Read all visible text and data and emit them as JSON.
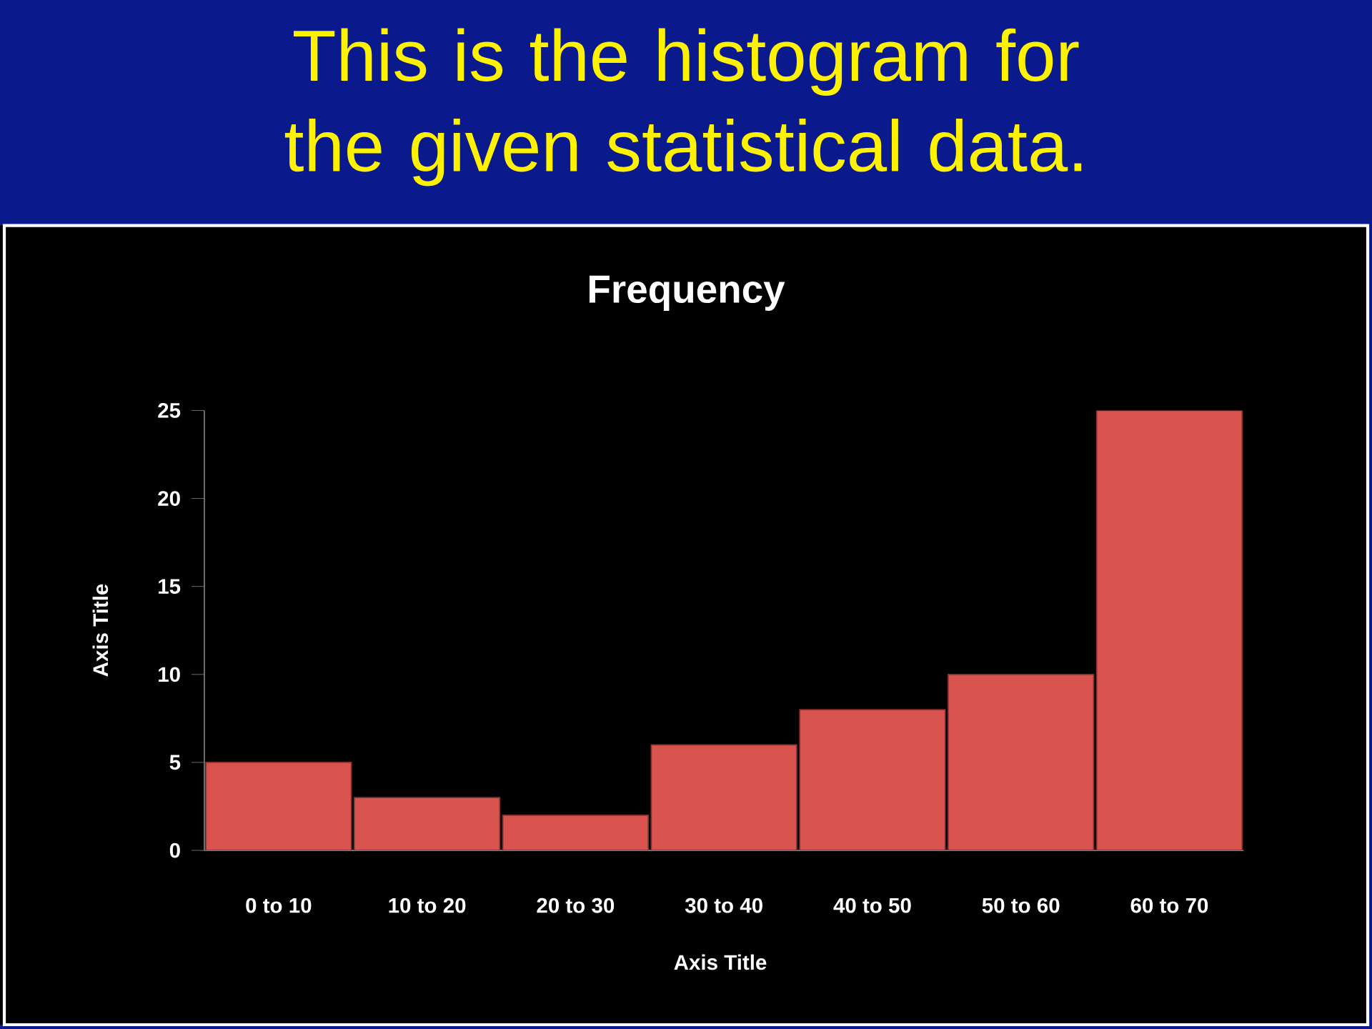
{
  "chart_data": {
    "type": "bar",
    "title": "This is the histogram for the given statistical data.",
    "subtitle": "Frequency",
    "xlabel": "Axis Title",
    "ylabel": "Axis Title",
    "categories": [
      "0 to 10",
      "10 to 20",
      "20 to 30",
      "30 to 40",
      "40 to 50",
      "50 to 60",
      "60 to 70"
    ],
    "values": [
      5,
      3,
      2,
      6,
      8,
      10,
      25
    ],
    "color": "#d9534f",
    "ylim": [
      0,
      25
    ],
    "yticks": [
      0,
      5,
      10,
      15,
      20,
      25
    ]
  }
}
